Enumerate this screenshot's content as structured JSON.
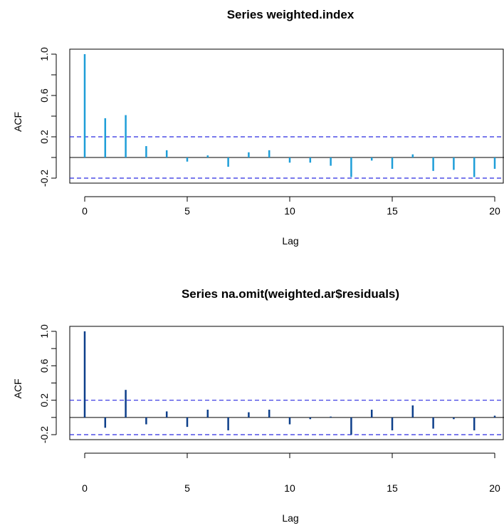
{
  "chart_data": [
    {
      "type": "bar",
      "title": "Series  weighted.index",
      "xlabel": "Lag",
      "ylabel": "ACF",
      "xlim": [
        0,
        20
      ],
      "ylim": [
        -0.2,
        1.0
      ],
      "x_ticks": [
        "0",
        "5",
        "10",
        "15",
        "20"
      ],
      "y_ticks": [
        "-0.2",
        "0.2",
        "0.6",
        "1.0"
      ],
      "series_color": "#1e9ed8",
      "ci_color": "#2a2ae0",
      "ci": [
        0.2,
        -0.2
      ],
      "x": [
        0,
        1,
        2,
        3,
        4,
        5,
        6,
        7,
        8,
        9,
        10,
        11,
        12,
        13,
        14,
        15,
        16,
        17,
        18,
        19,
        20
      ],
      "values": [
        1.0,
        0.38,
        0.41,
        0.11,
        0.07,
        -0.04,
        0.02,
        -0.09,
        0.05,
        0.07,
        -0.05,
        -0.05,
        -0.08,
        -0.19,
        -0.03,
        -0.11,
        0.03,
        -0.13,
        -0.12,
        -0.19,
        -0.11
      ]
    },
    {
      "type": "bar",
      "title": "Series  na.omit(weighted.ar$residuals)",
      "xlabel": "Lag",
      "ylabel": "ACF",
      "xlim": [
        0,
        20
      ],
      "ylim": [
        -0.2,
        1.0
      ],
      "x_ticks": [
        "0",
        "5",
        "10",
        "15",
        "20"
      ],
      "y_ticks": [
        "-0.2",
        "0.2",
        "0.6",
        "1.0"
      ],
      "series_color": "#0d3f8a",
      "ci_color": "#2a2ae0",
      "ci": [
        0.2,
        -0.2
      ],
      "x": [
        0,
        1,
        2,
        3,
        4,
        5,
        6,
        7,
        8,
        9,
        10,
        11,
        12,
        13,
        14,
        15,
        16,
        17,
        18,
        19,
        20
      ],
      "values": [
        1.0,
        -0.12,
        0.32,
        -0.08,
        0.07,
        -0.11,
        0.09,
        -0.15,
        0.06,
        0.09,
        -0.08,
        -0.02,
        0.01,
        -0.2,
        0.09,
        -0.15,
        0.14,
        -0.13,
        -0.02,
        -0.15,
        0.02
      ]
    }
  ]
}
